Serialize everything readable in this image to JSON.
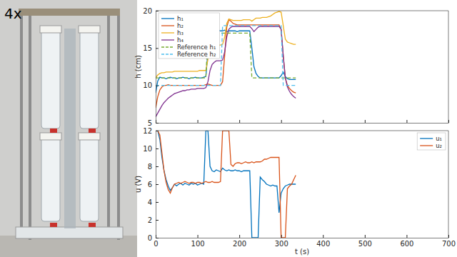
{
  "photo": {
    "caption": "4x"
  },
  "chart_data": [
    {
      "type": "line",
      "y_label": "h (cm)",
      "x": [
        0,
        5,
        10,
        15,
        20,
        25,
        30,
        35,
        40,
        45,
        50,
        55,
        60,
        65,
        70,
        75,
        80,
        85,
        90,
        95,
        100,
        105,
        110,
        115,
        120,
        125,
        130,
        135,
        140,
        145,
        150,
        155,
        160,
        165,
        170,
        175,
        180,
        185,
        190,
        195,
        200,
        205,
        210,
        215,
        220,
        225,
        230,
        235,
        240,
        245,
        250,
        255,
        260,
        265,
        270,
        275,
        280,
        285,
        290,
        295,
        300,
        305,
        310,
        315,
        320,
        325,
        330,
        335
      ],
      "xlim": [
        0,
        700
      ],
      "xticks": [
        0,
        100,
        200,
        300,
        400,
        500,
        600,
        700
      ],
      "ylim": [
        5,
        20
      ],
      "yticks": [
        5,
        10,
        15,
        20
      ],
      "grid": false,
      "legend": "upper left",
      "tick_labels": "y",
      "series": [
        {
          "name": "h₁",
          "color": "#0072bd",
          "line_style": "solid",
          "values": [
            9.0,
            10.6,
            11.1,
            11.0,
            11.0,
            10.9,
            11.0,
            11.1,
            11.0,
            11.0,
            10.9,
            11.0,
            11.0,
            11.1,
            11.0,
            11.0,
            10.9,
            11.0,
            11.0,
            11.1,
            11.0,
            11.0,
            11.0,
            11.1,
            11.2,
            14.5,
            17.3,
            17.8,
            17.6,
            17.4,
            17.4,
            17.3,
            17.3,
            17.4,
            17.2,
            17.3,
            17.3,
            17.3,
            17.3,
            17.2,
            17.3,
            17.3,
            17.3,
            17.3,
            17.3,
            17.3,
            15.0,
            12.5,
            11.6,
            11.2,
            11.0,
            11.0,
            11.0,
            11.0,
            11.0,
            11.0,
            11.0,
            11.0,
            11.0,
            11.0,
            11.3,
            11.8,
            11.2,
            10.9,
            10.8,
            10.8,
            10.8,
            10.8
          ]
        },
        {
          "name": "h₂",
          "color": "#d95319",
          "line_style": "solid",
          "values": [
            7.0,
            8.5,
            9.4,
            9.8,
            10.0,
            10.0,
            10.1,
            10.0,
            10.0,
            10.0,
            10.0,
            10.0,
            10.0,
            10.0,
            10.0,
            10.0,
            10.0,
            10.0,
            10.0,
            10.0,
            10.0,
            10.0,
            10.0,
            10.0,
            10.1,
            10.2,
            10.1,
            10.0,
            10.0,
            10.0,
            10.0,
            10.0,
            10.5,
            14.0,
            17.8,
            18.8,
            18.6,
            18.3,
            18.2,
            18.1,
            18.1,
            18.1,
            18.1,
            18.1,
            18.1,
            18.1,
            18.1,
            18.1,
            18.1,
            18.1,
            18.1,
            18.1,
            18.1,
            18.1,
            18.1,
            18.1,
            18.1,
            18.1,
            18.1,
            18.1,
            17.5,
            14.0,
            11.0,
            10.0,
            9.6,
            9.3,
            9.1,
            9.0
          ]
        },
        {
          "name": "h₃",
          "color": "#edb120",
          "line_style": "solid",
          "values": [
            11.0,
            11.4,
            11.6,
            11.7,
            11.7,
            11.8,
            11.8,
            11.8,
            11.8,
            11.9,
            11.9,
            11.9,
            11.9,
            11.9,
            11.9,
            11.9,
            11.9,
            11.9,
            11.9,
            11.9,
            11.9,
            12.0,
            12.0,
            12.0,
            12.0,
            13.5,
            15.0,
            15.3,
            15.4,
            15.4,
            15.4,
            15.4,
            15.5,
            16.5,
            18.3,
            18.9,
            18.8,
            18.7,
            18.7,
            18.7,
            18.7,
            18.7,
            18.8,
            18.8,
            18.8,
            18.8,
            18.6,
            18.8,
            19.0,
            19.0,
            19.0,
            19.1,
            19.1,
            19.1,
            19.2,
            19.3,
            19.5,
            19.7,
            19.8,
            19.9,
            19.8,
            18.0,
            16.2,
            15.8,
            15.7,
            15.6,
            15.5,
            15.5
          ]
        },
        {
          "name": "h₄",
          "color": "#7e2f8e",
          "line_style": "solid",
          "values": [
            5.8,
            6.3,
            6.8,
            7.3,
            7.7,
            8.0,
            8.3,
            8.5,
            8.7,
            8.9,
            9.0,
            9.1,
            9.2,
            9.3,
            9.3,
            9.4,
            9.4,
            9.5,
            9.5,
            9.5,
            9.6,
            9.6,
            9.6,
            9.6,
            9.7,
            10.5,
            12.0,
            12.8,
            13.1,
            13.3,
            13.3,
            13.3,
            13.4,
            14.5,
            16.5,
            17.5,
            17.8,
            17.9,
            17.9,
            17.9,
            17.9,
            17.9,
            17.9,
            17.9,
            17.9,
            17.9,
            17.6,
            17.2,
            17.5,
            17.8,
            17.9,
            17.9,
            17.9,
            17.9,
            17.9,
            17.9,
            17.9,
            17.9,
            17.9,
            17.9,
            17.5,
            14.0,
            11.0,
            9.8,
            9.2,
            8.8,
            8.5,
            8.3
          ]
        },
        {
          "name": "Reference h₁",
          "color": "#77ac30",
          "line_style": "dashed",
          "values": [
            11,
            11,
            11,
            11,
            11,
            11,
            11,
            11,
            11,
            11,
            11,
            11,
            11,
            11,
            11,
            11,
            11,
            11,
            11,
            11,
            11,
            11,
            11,
            11,
            11,
            17,
            17,
            17,
            17,
            17,
            17,
            17,
            17,
            17,
            17,
            17,
            17,
            17,
            17,
            17,
            17,
            17,
            17,
            17,
            17,
            17,
            11,
            11,
            11,
            11,
            11,
            11,
            11,
            11,
            11,
            11,
            11,
            11,
            11,
            11,
            11,
            11,
            11,
            11,
            11,
            11,
            11,
            11
          ]
        },
        {
          "name": "Reference h₂",
          "color": "#4dbeee",
          "line_style": "dashed",
          "values": [
            10,
            10,
            10,
            10,
            10,
            10,
            10,
            10,
            10,
            10,
            10,
            10,
            10,
            10,
            10,
            10,
            10,
            10,
            10,
            10,
            10,
            10,
            10,
            10,
            10,
            10,
            10,
            10,
            10,
            10,
            10,
            10,
            18,
            18,
            18,
            18,
            18,
            18,
            18,
            18,
            18,
            18,
            18,
            18,
            18,
            18,
            18,
            18,
            18,
            18,
            18,
            18,
            18,
            18,
            18,
            18,
            18,
            18,
            18,
            18,
            18,
            10,
            10,
            10,
            10,
            10,
            10,
            10
          ]
        }
      ]
    },
    {
      "type": "line",
      "x_label": "t (s)",
      "y_label": "u (V)",
      "x": [
        0,
        5,
        10,
        15,
        20,
        25,
        30,
        35,
        40,
        45,
        50,
        55,
        60,
        65,
        70,
        75,
        80,
        85,
        90,
        95,
        100,
        105,
        110,
        115,
        120,
        125,
        130,
        135,
        140,
        145,
        150,
        155,
        160,
        165,
        170,
        175,
        180,
        185,
        190,
        195,
        200,
        205,
        210,
        215,
        220,
        225,
        230,
        235,
        240,
        245,
        250,
        255,
        260,
        265,
        270,
        275,
        280,
        285,
        290,
        295,
        300,
        305,
        310,
        315,
        320,
        325,
        330,
        335
      ],
      "xlim": [
        0,
        700
      ],
      "xticks": [
        0,
        100,
        200,
        300,
        400,
        500,
        600,
        700
      ],
      "ylim": [
        0,
        12
      ],
      "yticks": [
        0,
        2,
        4,
        6,
        8,
        10,
        12
      ],
      "grid": false,
      "legend": "upper right",
      "series": [
        {
          "name": "u₁",
          "color": "#0072bd",
          "line_style": "solid",
          "values": [
            12,
            12,
            11,
            9,
            7.5,
            6.5,
            5.8,
            5.3,
            5.6,
            6.0,
            5.8,
            6.0,
            6.1,
            5.9,
            6.1,
            6.0,
            5.9,
            6.1,
            6.0,
            6.1,
            5.9,
            6.0,
            6.1,
            6.0,
            12,
            12,
            8.0,
            7.5,
            7.4,
            7.6,
            7.5,
            7.4,
            7.8,
            7.6,
            7.5,
            7.6,
            7.5,
            7.5,
            7.6,
            7.5,
            7.5,
            7.4,
            7.5,
            7.5,
            7.5,
            7.5,
            0,
            0,
            0,
            0,
            6.8,
            6.5,
            6.3,
            6.0,
            5.9,
            5.8,
            5.9,
            5.8,
            5.8,
            2.8,
            5.0,
            5.5,
            5.8,
            5.9,
            6.0,
            6.0,
            6.0,
            6.0
          ]
        },
        {
          "name": "u₂",
          "color": "#d95319",
          "line_style": "solid",
          "values": [
            12,
            12,
            11.5,
            9.5,
            7.5,
            6.2,
            5.4,
            5.0,
            5.6,
            6.0,
            6.1,
            6.2,
            6.1,
            6.2,
            6.3,
            6.2,
            6.1,
            6.2,
            6.2,
            6.1,
            6.2,
            6.2,
            6.1,
            6.2,
            6.3,
            6.2,
            6.2,
            6.3,
            6.2,
            6.2,
            6.2,
            6.3,
            12,
            12,
            12,
            12,
            8.2,
            8.0,
            8.3,
            8.4,
            8.4,
            8.3,
            8.4,
            8.5,
            8.4,
            8.4,
            8.5,
            8.4,
            8.5,
            8.5,
            8.5,
            8.6,
            8.8,
            8.8,
            8.9,
            9.0,
            9.0,
            9.0,
            9.0,
            9.0,
            0,
            0,
            0,
            5.5,
            5.8,
            6.0,
            6.5,
            7.0
          ]
        }
      ]
    }
  ]
}
